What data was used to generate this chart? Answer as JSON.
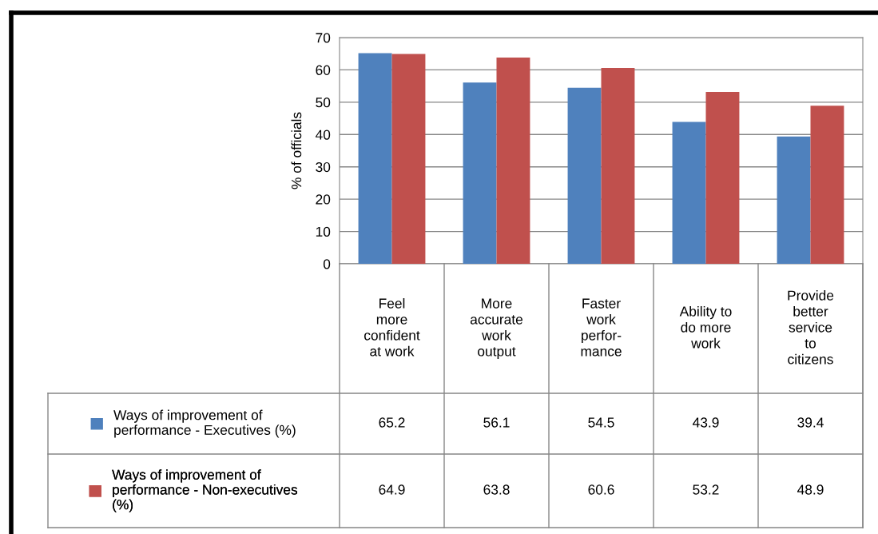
{
  "chart_data": {
    "type": "bar",
    "ylabel": "% of officials",
    "categories": [
      "Feel\nmore\nconfident\nat work",
      "More\naccurate\nwork\noutput",
      "Faster\nwork\nperfor-\nmance",
      "Ability to\ndo more\nwork",
      "Provide\nbetter\nservice\nto\ncitizens"
    ],
    "series": [
      {
        "name": "Ways of improvement of\nperformance - Executives (%)",
        "color": "#4f81bd",
        "values": [
          65.2,
          56.1,
          54.5,
          43.9,
          39.4
        ]
      },
      {
        "name": "Ways of improvement of\nperformance - Non-executives\n(%)",
        "color": "#c0504d",
        "values": [
          64.9,
          63.8,
          60.6,
          53.2,
          48.9
        ]
      }
    ],
    "ylim": [
      0,
      70
    ],
    "yticks": [
      0,
      10,
      20,
      30,
      40,
      50,
      60,
      70
    ],
    "grid": "y",
    "data_labels": true,
    "legend": "bottom left"
  }
}
